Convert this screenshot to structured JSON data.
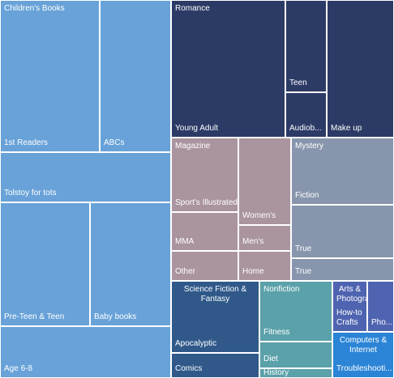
{
  "chart_data": {
    "type": "treemap",
    "title": "",
    "palette": {
      "light_blue": "#68a2d8",
      "navy": "#2c3a66",
      "mauve": "#a9949f",
      "slate": "#8796ad",
      "steel_blue": "#30598a",
      "teal": "#5ba1aa",
      "indigo": "#4f64b0",
      "bright_blue": "#2b84d6"
    },
    "groups": [
      {
        "name": "Children's Books",
        "color": "#68a2d8",
        "items": [
          {
            "name": "1st Readers",
            "value": 22
          },
          {
            "name": "ABCs",
            "value": 16
          },
          {
            "name": "Tolstoy for tots",
            "value": 12
          },
          {
            "name": "Pre-Teen & Teen",
            "value": 17
          },
          {
            "name": "Baby books",
            "value": 15
          },
          {
            "name": "Age 6-8",
            "value": 13
          }
        ]
      },
      {
        "name": "Romance",
        "color": "#2c3a66",
        "items": [
          {
            "name": "Young Adult",
            "value": 24
          },
          {
            "name": "Teen",
            "value": 6
          },
          {
            "name": "Audiob...",
            "value": 6
          },
          {
            "name": "Make up",
            "value": 14
          }
        ]
      },
      {
        "name": "Magazine",
        "color": "#a9949f",
        "items": [
          {
            "name": "Sport's Illustrated",
            "value": 6
          },
          {
            "name": "Women's",
            "value": 7
          },
          {
            "name": "MMA",
            "value": 4
          },
          {
            "name": "Men's",
            "value": 2.5
          },
          {
            "name": "Other",
            "value": 3
          },
          {
            "name": "Home",
            "value": 2.5
          }
        ]
      },
      {
        "name": "Mystery",
        "color": "#8796ad",
        "items": [
          {
            "name": "Fiction",
            "value": 10
          },
          {
            "name": "True",
            "value": 7
          },
          {
            "name": "True",
            "value": 3
          }
        ]
      },
      {
        "name": "Science Fiction & Fantasy",
        "color": "#30598a",
        "items": [
          {
            "name": "Apocalyptic",
            "value": 11
          },
          {
            "name": "Comics",
            "value": 5
          }
        ]
      },
      {
        "name": "Nonfiction",
        "color": "#5ba1aa",
        "items": [
          {
            "name": "Fitness",
            "value": 8
          },
          {
            "name": "Diet",
            "value": 3.6
          },
          {
            "name": "History",
            "value": 1.2
          }
        ]
      },
      {
        "name": "Arts & Photography",
        "color": "#4f64b0",
        "items": [
          {
            "name": "How-to Crafts",
            "value": 3.5
          },
          {
            "name": "Pho...",
            "value": 1.8
          }
        ]
      },
      {
        "name": "Computers & Internet",
        "color": "#2b84d6",
        "items": [
          {
            "name": "Troubleshooti...",
            "value": 4.8
          }
        ]
      }
    ]
  }
}
